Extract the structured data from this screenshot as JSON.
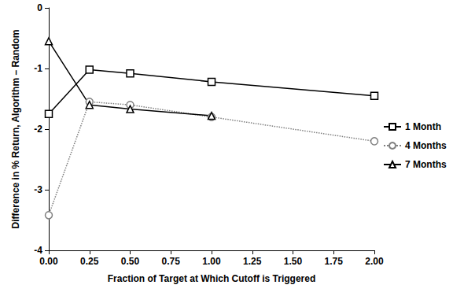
{
  "chart_data": {
    "type": "line",
    "x_label": "Fraction of Target at Which Cutoff is Triggered",
    "y_label": "Difference in % Return, Algorithm – Random",
    "x": [
      0,
      0.25,
      0.5,
      1.0,
      2.0
    ],
    "series": [
      {
        "name": "1 Month",
        "color": "#000000",
        "marker": "square",
        "line_style": "solid",
        "values": [
          -1.75,
          -1.02,
          -1.08,
          -1.22,
          -1.45
        ]
      },
      {
        "name": "4 Months",
        "color": "#808080",
        "marker": "circle",
        "line_style": "dotted",
        "values": [
          -3.42,
          -1.55,
          -1.6,
          -1.8,
          -2.2
        ]
      },
      {
        "name": "7 Months",
        "color": "#000000",
        "marker": "triangle",
        "line_style": "solid",
        "values": [
          -0.55,
          -1.6,
          -1.67,
          -1.78,
          null
        ]
      }
    ],
    "xlim": [
      0,
      2
    ],
    "xticks": [
      {
        "value": 0,
        "label": "0.00"
      },
      {
        "value": 0.25,
        "label": "0.25"
      },
      {
        "value": 0.5,
        "label": "0.50"
      },
      {
        "value": 0.75,
        "label": "0.75"
      },
      {
        "value": 1.0,
        "label": "1.00"
      },
      {
        "value": 1.25,
        "label": "1.25"
      },
      {
        "value": 1.5,
        "label": "1.50"
      },
      {
        "value": 1.75,
        "label": "1.75"
      },
      {
        "value": 2.0,
        "label": "2.00"
      }
    ],
    "ylim": [
      -4,
      0
    ],
    "yticks": [
      -4,
      -3,
      -2,
      -1,
      0
    ],
    "grid": false,
    "legend": "right"
  }
}
